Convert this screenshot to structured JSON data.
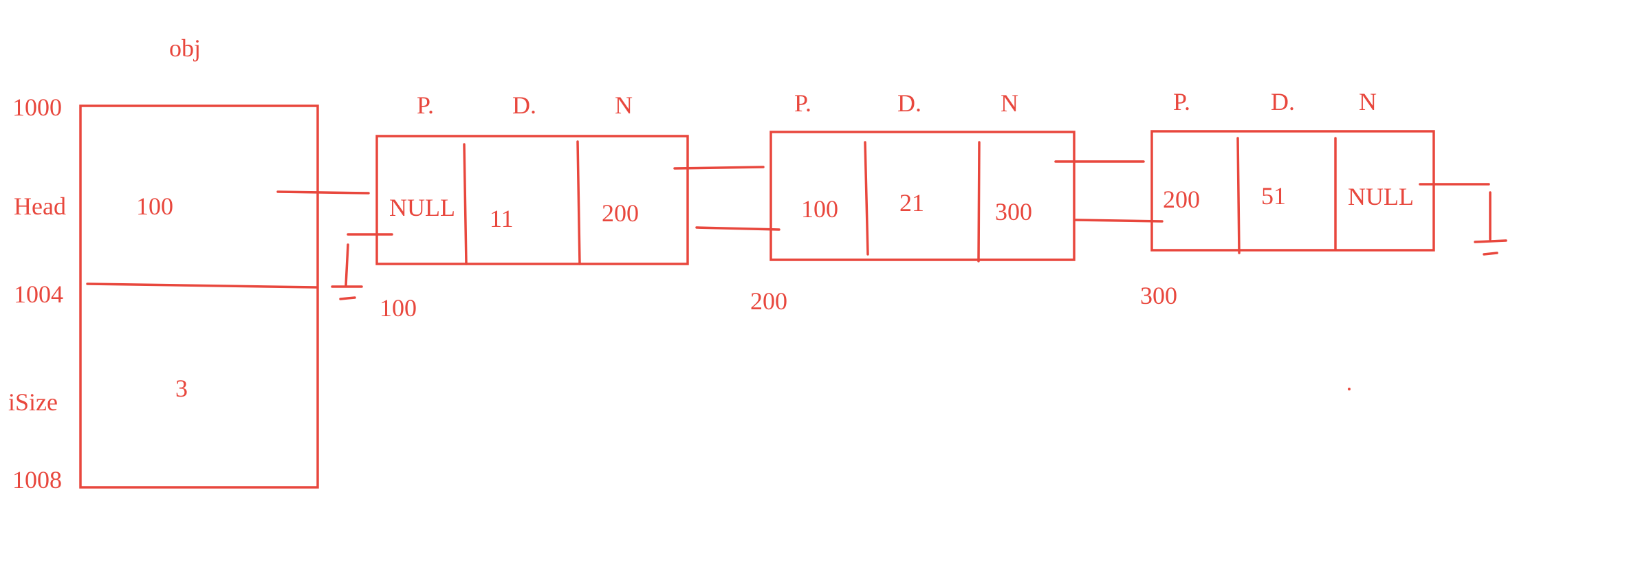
{
  "colors": {
    "ink": "#e8473d",
    "background": "#ffffff"
  },
  "object": {
    "name": "obj",
    "addresses": [
      "1000",
      "1004",
      "1008"
    ],
    "fields": [
      {
        "label": "Head",
        "value": "100"
      },
      {
        "label": "iSize",
        "value": "3"
      }
    ]
  },
  "node_headers": [
    "P.",
    "D.",
    "N"
  ],
  "nodes": [
    {
      "address": "100",
      "prev": "NULL",
      "data": "11",
      "next": "200"
    },
    {
      "address": "200",
      "prev": "100",
      "data": "21",
      "next": "300"
    },
    {
      "address": "300",
      "prev": "200",
      "data": "51",
      "next": "NULL"
    }
  ]
}
